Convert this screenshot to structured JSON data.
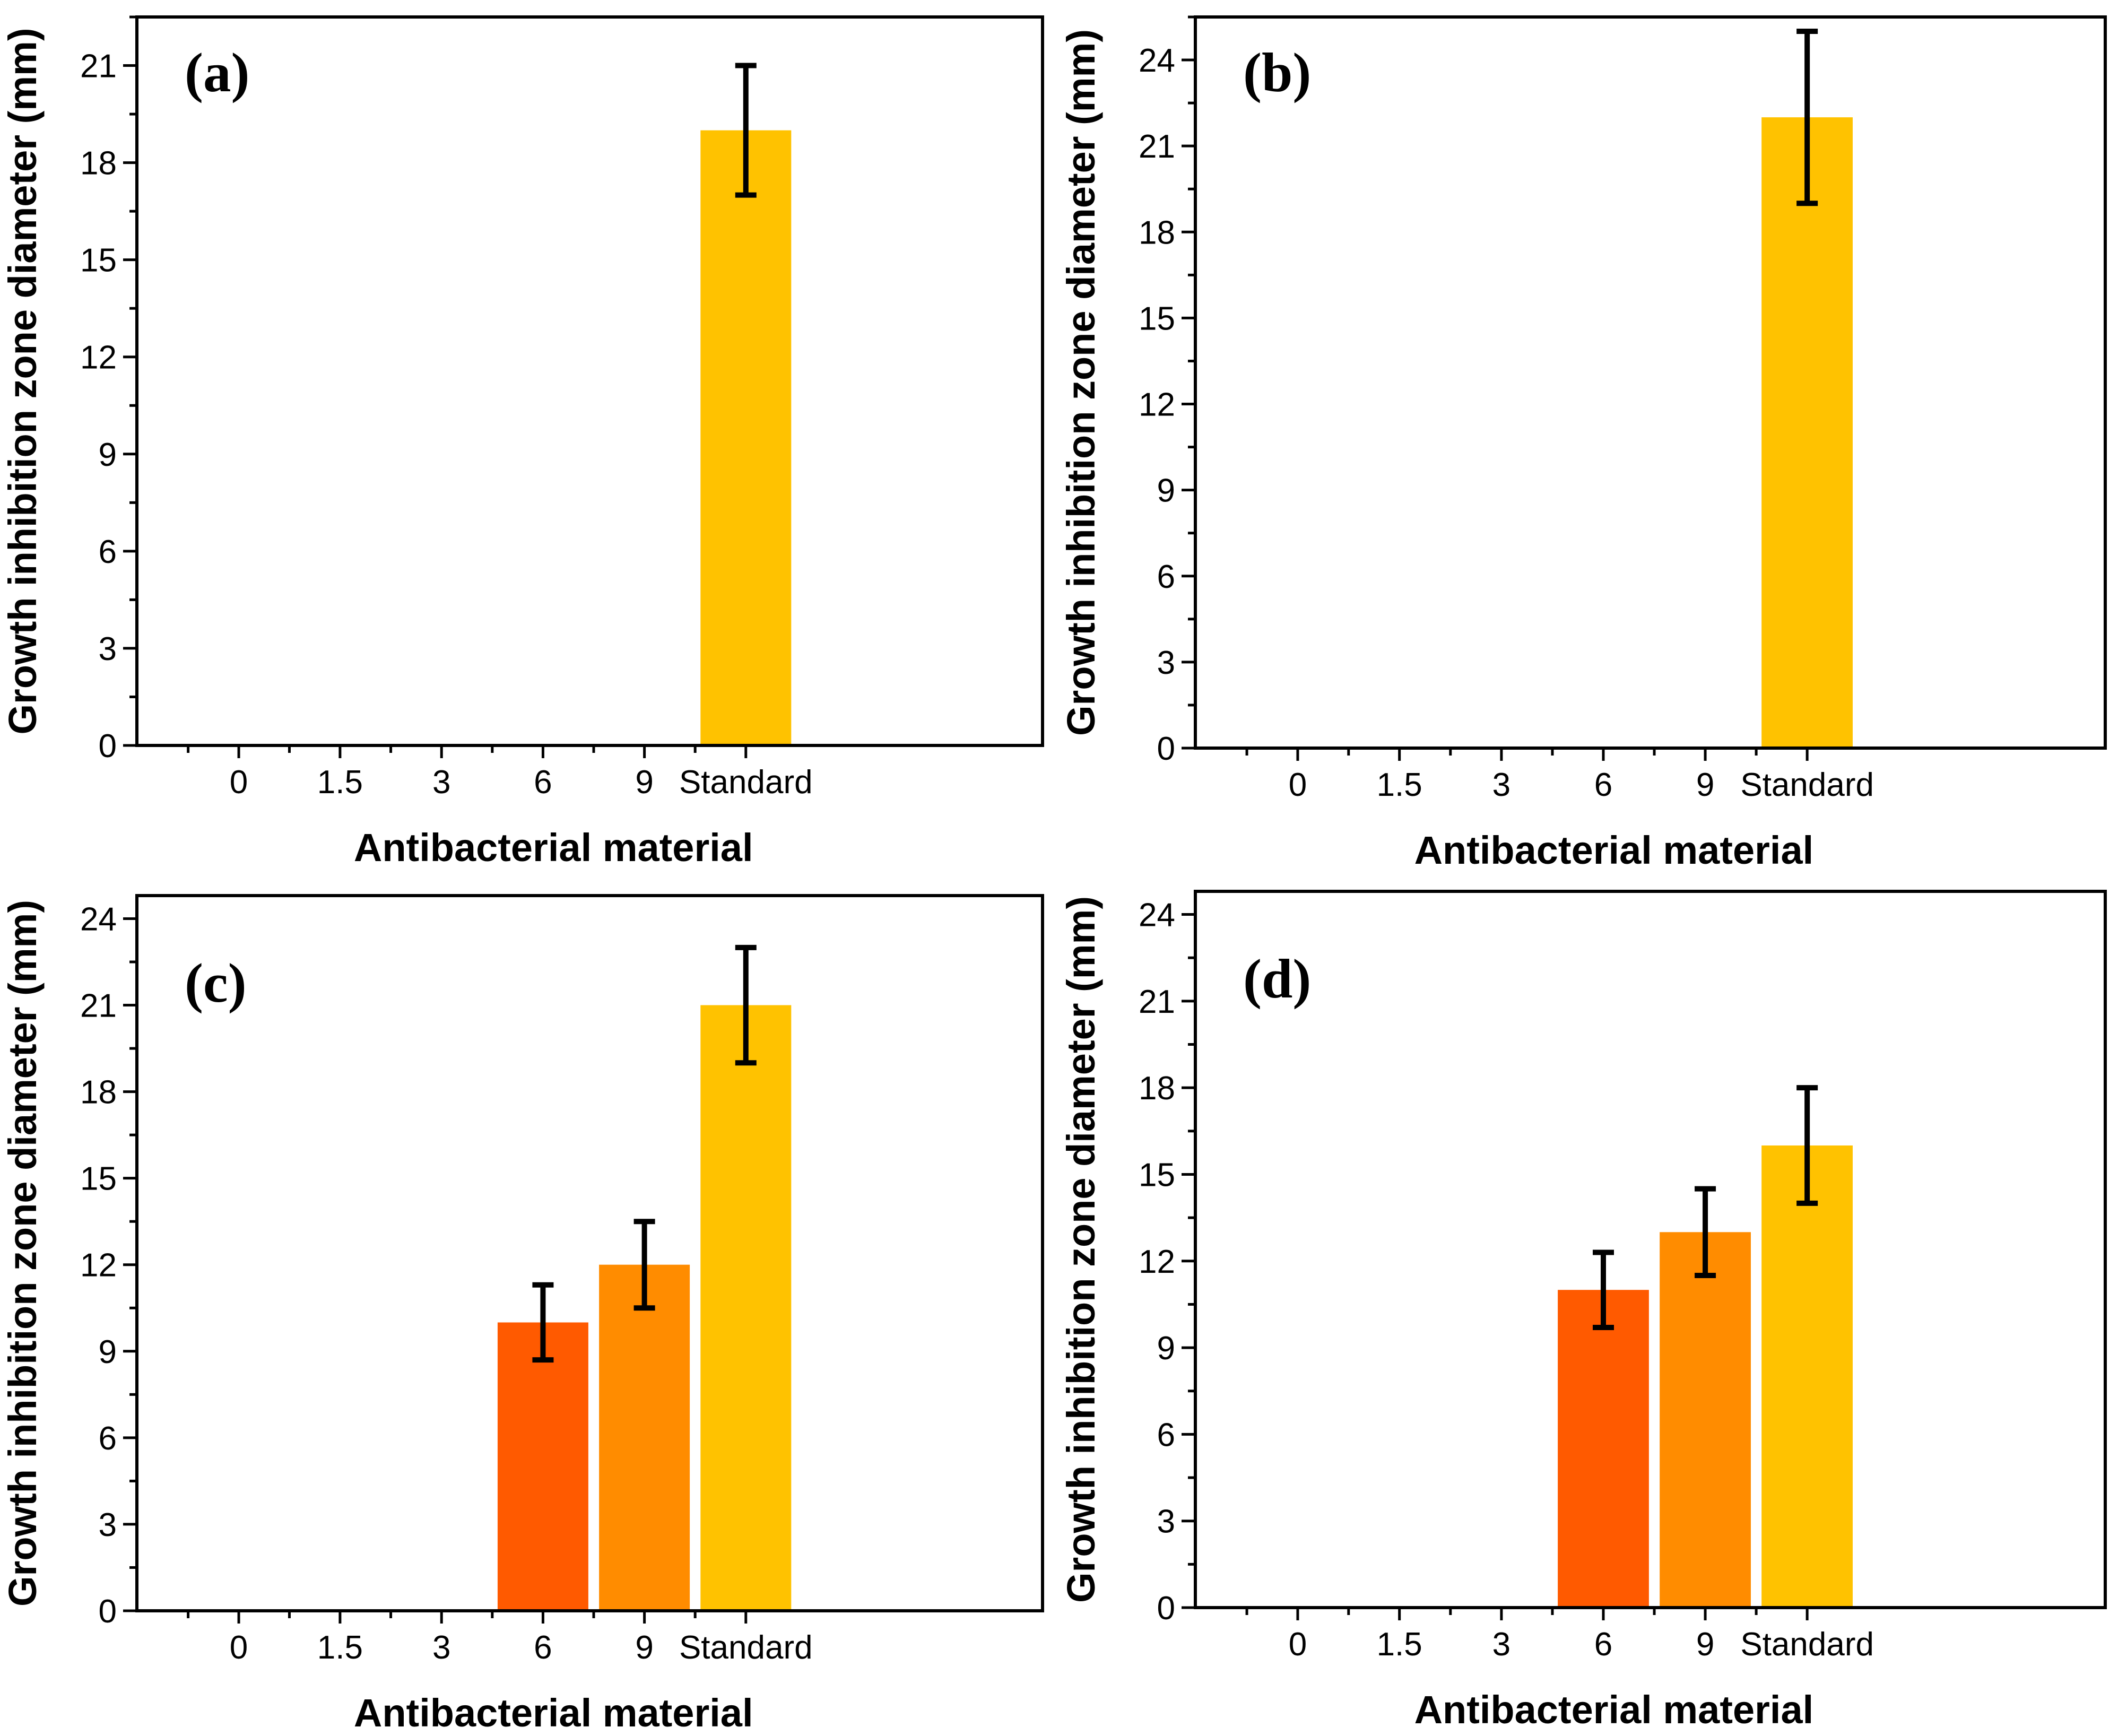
{
  "figure": {
    "colors": {
      "bar_6": "#FF5A00",
      "bar_9": "#FF8C00",
      "bar_standard": "#FFC200",
      "axis": "#000000",
      "error_bar": "#000000"
    }
  },
  "chart_data": [
    {
      "type": "bar",
      "label": "(a)",
      "categories": [
        "0",
        "1.5",
        "3",
        "6",
        "9",
        "Standard"
      ],
      "values": [
        0,
        0,
        0,
        0,
        0,
        19
      ],
      "errors": [
        0,
        0,
        0,
        0,
        0,
        2
      ],
      "xlabel": "Antibacterial material",
      "ylabel": "Growth inhibition zone diameter (mm)",
      "ylim": [
        0,
        22.5
      ],
      "yticks": [
        0,
        3,
        6,
        9,
        12,
        15,
        18,
        21
      ]
    },
    {
      "type": "bar",
      "label": "(b)",
      "categories": [
        "0",
        "1.5",
        "3",
        "6",
        "9",
        "Standard"
      ],
      "values": [
        0,
        0,
        0,
        0,
        0,
        22
      ],
      "errors": [
        0,
        0,
        0,
        0,
        0,
        3
      ],
      "xlabel": "Antibacterial material",
      "ylabel": "Growth inhibition zone diameter (mm)",
      "ylim": [
        0,
        25.5
      ],
      "yticks": [
        0,
        3,
        6,
        9,
        12,
        15,
        18,
        21,
        24
      ]
    },
    {
      "type": "bar",
      "label": "(c)",
      "categories": [
        "0",
        "1.5",
        "3",
        "6",
        "9",
        "Standard"
      ],
      "values": [
        0,
        0,
        0,
        10,
        12,
        21
      ],
      "errors": [
        0,
        0,
        0,
        1.3,
        1.5,
        2
      ],
      "xlabel": "Antibacterial material",
      "ylabel": "Growth inhibition zone diameter (mm)",
      "ylim": [
        0,
        24.8
      ],
      "yticks": [
        0,
        3,
        6,
        9,
        12,
        15,
        18,
        21,
        24
      ]
    },
    {
      "type": "bar",
      "label": "(d)",
      "categories": [
        "0",
        "1.5",
        "3",
        "6",
        "9",
        "Standard"
      ],
      "values": [
        0,
        0,
        0,
        11,
        13,
        16
      ],
      "errors": [
        0,
        0,
        0,
        1.3,
        1.5,
        2
      ],
      "xlabel": "Antibacterial material",
      "ylabel": "Growth inhibition zone diameter (mm)",
      "ylim": [
        0,
        24.8
      ],
      "yticks": [
        0,
        3,
        6,
        9,
        12,
        15,
        18,
        21,
        24
      ]
    }
  ]
}
